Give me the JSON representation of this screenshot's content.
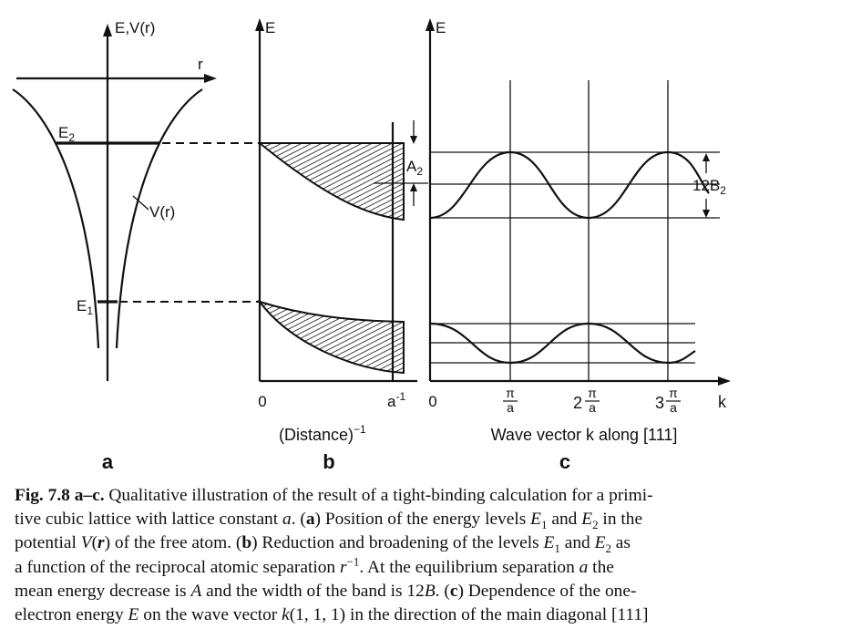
{
  "panel_a": {
    "axis_label": "E,V(r)",
    "r_label": "r",
    "e2_label": "E",
    "e2_sub": "2",
    "e1_label": "E",
    "e1_sub": "1",
    "potential_label": "V(r)",
    "panel_letter": "a"
  },
  "panel_b": {
    "axis_label": "E",
    "a2_label": "A",
    "a2_sub": "2",
    "origin_label": "0",
    "end_tick_base": "a",
    "end_tick_sup": "-1",
    "xlabel_base": "(Distance)",
    "xlabel_sup": "−1",
    "panel_letter": "b"
  },
  "panel_c": {
    "axis_label": "E",
    "b2_label": "12B",
    "b2_sub": "2",
    "origin_label": "0",
    "tick1_num": "π",
    "tick1_den": "a",
    "tick2_coef": "2",
    "tick2_num": "π",
    "tick2_den": "a",
    "tick3_coef": "3",
    "tick3_num": "π",
    "tick3_den": "a",
    "k_label": "k",
    "xlabel": "Wave vector k along [111]",
    "panel_letter": "c"
  },
  "caption": {
    "fig_label": "Fig. 7.8 a–c.",
    "lines": [
      [
        {
          "t": "Fig. 7.8 a–c.",
          "s": "bd"
        },
        {
          "t": " Qualitative illustration of the result of a tight-binding calculation for a primi-",
          "s": ""
        }
      ],
      [
        {
          "t": "tive cubic lattice with lattice constant ",
          "s": ""
        },
        {
          "t": "a",
          "s": "it"
        },
        {
          "t": ". (",
          "s": ""
        },
        {
          "t": "a",
          "s": "bd"
        },
        {
          "t": ") Position of the energy levels ",
          "s": ""
        },
        {
          "t": "E",
          "s": "it"
        },
        {
          "t": "1",
          "s": "sub"
        },
        {
          "t": " and ",
          "s": ""
        },
        {
          "t": "E",
          "s": "it"
        },
        {
          "t": "2",
          "s": "sub"
        },
        {
          "t": " in the",
          "s": ""
        }
      ],
      [
        {
          "t": "potential ",
          "s": ""
        },
        {
          "t": "V",
          "s": "it"
        },
        {
          "t": "(",
          "s": ""
        },
        {
          "t": "r",
          "s": "bd it"
        },
        {
          "t": ") of the free atom. (",
          "s": ""
        },
        {
          "t": "b",
          "s": "bd"
        },
        {
          "t": ") Reduction and broadening of the levels ",
          "s": ""
        },
        {
          "t": "E",
          "s": "it"
        },
        {
          "t": "1",
          "s": "sub"
        },
        {
          "t": " and ",
          "s": ""
        },
        {
          "t": "E",
          "s": "it"
        },
        {
          "t": "2",
          "s": "sub"
        },
        {
          "t": " as",
          "s": ""
        }
      ],
      [
        {
          "t": "a function of the reciprocal atomic separation ",
          "s": ""
        },
        {
          "t": "r",
          "s": "it"
        },
        {
          "t": "−1",
          "s": "sup"
        },
        {
          "t": ". At the equilibrium separation ",
          "s": ""
        },
        {
          "t": "a",
          "s": "it"
        },
        {
          "t": " the",
          "s": ""
        }
      ],
      [
        {
          "t": "mean energy decrease is ",
          "s": ""
        },
        {
          "t": "A",
          "s": "it"
        },
        {
          "t": " and the width of the band is 12",
          "s": ""
        },
        {
          "t": "B",
          "s": "it"
        },
        {
          "t": ". (",
          "s": ""
        },
        {
          "t": "c",
          "s": "bd"
        },
        {
          "t": ") Dependence of the one-",
          "s": ""
        }
      ],
      [
        {
          "t": "electron energy ",
          "s": ""
        },
        {
          "t": "E",
          "s": "it"
        },
        {
          "t": " on the wave vector ",
          "s": ""
        },
        {
          "t": "k",
          "s": "it"
        },
        {
          "t": "(1, 1, 1) in the direction of the main diagonal [111]",
          "s": ""
        }
      ]
    ]
  }
}
